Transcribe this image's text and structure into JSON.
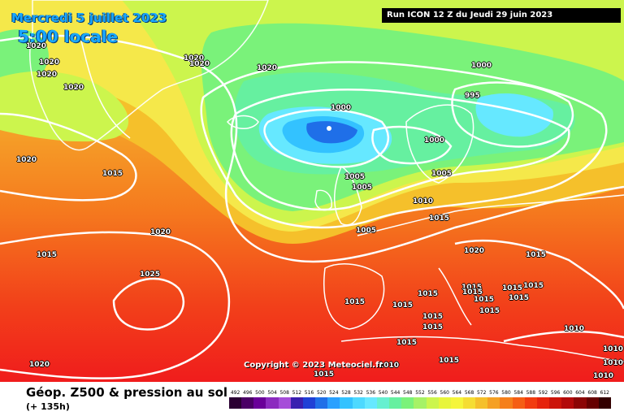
{
  "header": {
    "date": "Mercredi 5 juillet 2023",
    "time": "5:00 locale",
    "run": "Run ICON 12 Z du Jeudi 29 juin 2023"
  },
  "copyright": "Copyright © 2023 Meteociel.fr",
  "footer": {
    "title": "Géop. Z500 & pression au sol",
    "subtitle": "(+ 135h)"
  },
  "pressure_labels": [
    "1020",
    "1020",
    "1020",
    "1020",
    "1020",
    "1020",
    "1020",
    "1020",
    "1000",
    "1000",
    "995",
    "1000",
    "1015",
    "1020",
    "1015",
    "1005",
    "1005",
    "1005",
    "1010",
    "1015",
    "1005",
    "1020",
    "1025",
    "1020",
    "1015",
    "1015",
    "1015",
    "1015",
    "1015",
    "1015",
    "1015",
    "1015",
    "1015",
    "1015",
    "1015",
    "1015",
    "1015",
    "1015",
    "1015",
    "1015",
    "1010",
    "1010",
    "1010",
    "1010",
    "1010"
  ],
  "legend": {
    "ticks": [
      "492",
      "496",
      "500",
      "504",
      "508",
      "512",
      "516",
      "520",
      "524",
      "528",
      "532",
      "536",
      "540",
      "544",
      "548",
      "552",
      "556",
      "560",
      "564",
      "568",
      "572",
      "576",
      "580",
      "584",
      "588",
      "592",
      "596",
      "600",
      "604",
      "608",
      "612"
    ],
    "colors": [
      "#2b0033",
      "#4b0066",
      "#6a0099",
      "#8c2bbf",
      "#a64dd9",
      "#3a1fb0",
      "#1f40d6",
      "#1f6fe8",
      "#2aa0ff",
      "#33c2ff",
      "#4dd9ff",
      "#66e8ff",
      "#66f0d0",
      "#66f0a0",
      "#7af27a",
      "#a6f266",
      "#ccf54d",
      "#e8f53b",
      "#f5f53b",
      "#f5dd33",
      "#f5c02b",
      "#f5a023",
      "#f57f1a",
      "#f55e14",
      "#f23c0f",
      "#e6230c",
      "#cc1409",
      "#b30a0a",
      "#8c0505",
      "#660000",
      "#330000"
    ]
  }
}
